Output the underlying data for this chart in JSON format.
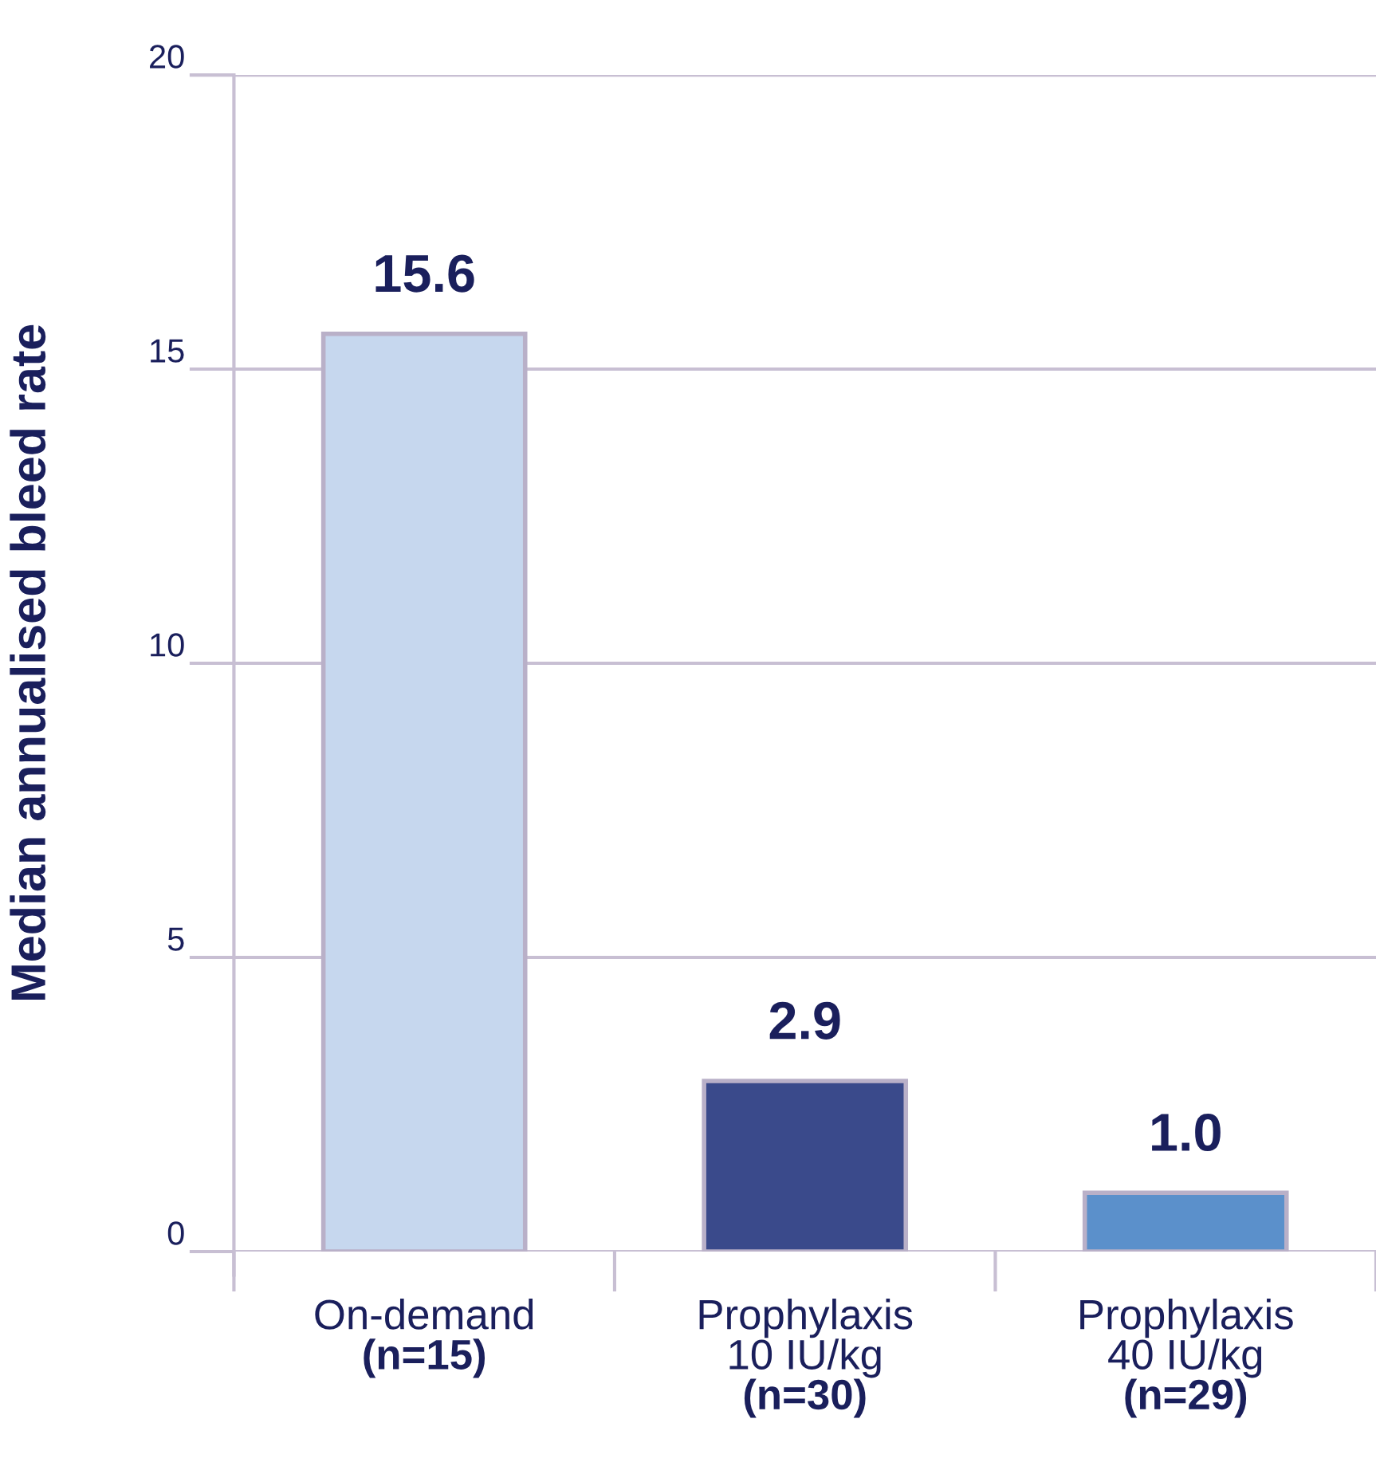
{
  "chart_data": {
    "type": "bar",
    "ylabel": "Median annualised bleed rate",
    "categories": [
      "On-demand\n(n=15)",
      "Prophylaxis\n10 IU/kg\n(n=30)",
      "Prophylaxis\n40 IU/kg\n(n=29)"
    ],
    "values": [
      15.6,
      2.9,
      1.0
    ],
    "colors": [
      "#c6d7ee",
      "#3a4a8b",
      "#5b90cb"
    ],
    "ylim": [
      0,
      20
    ],
    "yticks": [
      0,
      5,
      10,
      15,
      20
    ],
    "grid": "y",
    "value_labels": [
      "15.6",
      "2.9",
      "1.0"
    ],
    "legend": false
  }
}
